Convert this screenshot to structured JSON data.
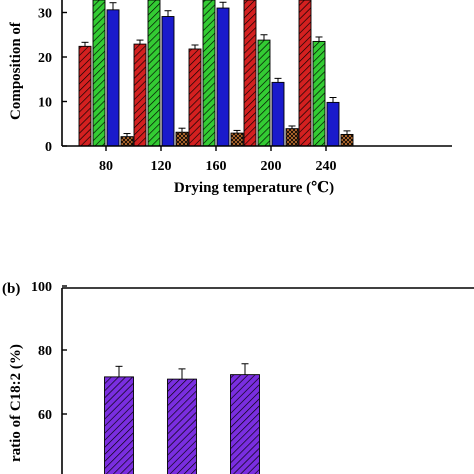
{
  "chart_data": [
    {
      "panel_label": "",
      "type": "bar",
      "xlabel": "Drying temperature (℃)",
      "ylabel": "Composition of",
      "categories": [
        "80",
        "120",
        "160",
        "200",
        "240"
      ],
      "y_ticks": [
        "0",
        "10",
        "20",
        "30"
      ],
      "ylim": [
        0,
        35
      ],
      "grid": false,
      "legend": false,
      "series": [
        {
          "color": "#d42020",
          "hatch": "diagonal",
          "values": [
            22.4,
            22.9,
            21.8,
            40,
            40
          ],
          "errors": [
            0.9,
            0.9,
            0.9,
            0,
            0
          ]
        },
        {
          "color": "#33cc33",
          "hatch": "diagonal",
          "values": [
            40,
            40,
            40,
            23.8,
            23.5
          ],
          "errors": [
            0,
            0,
            0,
            1.2,
            1.0
          ]
        },
        {
          "color": "#1a1acc",
          "hatch": "none",
          "values": [
            30.6,
            29.1,
            31.0,
            14.3,
            9.8
          ],
          "errors": [
            1.6,
            1.3,
            1.3,
            0.9,
            1.1
          ]
        },
        {
          "color": "#c87533",
          "hatch": "cross",
          "values": [
            2.1,
            3.1,
            2.9,
            3.9,
            2.6
          ],
          "errors": [
            0.7,
            0.9,
            0.6,
            0.6,
            0.8
          ]
        }
      ]
    },
    {
      "panel_label": "(b)",
      "type": "bar",
      "xlabel": "",
      "ylabel": "ratio of C18:2 (%)",
      "categories": [
        "",
        "",
        ""
      ],
      "y_ticks": [
        "60",
        "80",
        "100"
      ],
      "ylim": [
        40,
        100
      ],
      "grid": false,
      "legend": false,
      "series": [
        {
          "color": "#7a2ee0",
          "hatch": "diagonal",
          "values": [
            71.6,
            70.9,
            72.3
          ],
          "errors": [
            3.3,
            3.2,
            3.4
          ]
        }
      ]
    }
  ]
}
